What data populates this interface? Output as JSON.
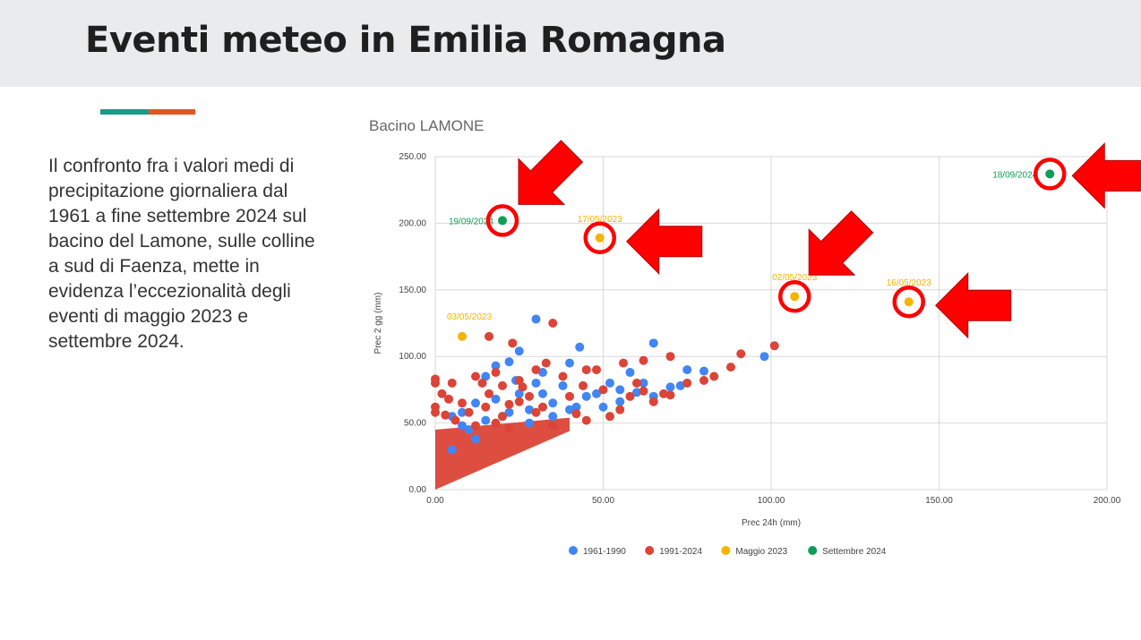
{
  "header": {
    "title": "Eventi meteo in Emilia Romagna"
  },
  "body_text": "Il confronto fra i valori medi di precipitazione giornaliera dal 1961 a fine settembre 2024 sul bacino del Lamone, sulle colline a sud di Faenza, mette in evidenza l’eccezionalità degli eventi di maggio 2023 e settembre 2024.",
  "colors": {
    "accent_teal": "#1a9b8a",
    "accent_orange": "#e1571f",
    "arrow": "#ff0000"
  },
  "chart_data": {
    "type": "scatter",
    "title": "Bacino LAMONE",
    "xlabel": "Prec 24h (mm)",
    "ylabel": "Prec 2 gg (mm)",
    "xlim": [
      0,
      200
    ],
    "ylim": [
      0,
      250
    ],
    "x_ticks": [
      "0.00",
      "50.00",
      "100.00",
      "150.00",
      "200.00"
    ],
    "y_ticks": [
      "0.00",
      "50.00",
      "100.00",
      "150.00",
      "200.00",
      "250.00"
    ],
    "grid": true,
    "legend_position": "bottom",
    "series": [
      {
        "name": "1961-1990",
        "color": "#4285f4",
        "points": [
          [
            30,
            128
          ],
          [
            43,
            107
          ],
          [
            65,
            110
          ],
          [
            98,
            100
          ],
          [
            25,
            104
          ],
          [
            18,
            93
          ],
          [
            22,
            96
          ],
          [
            32,
            88
          ],
          [
            40,
            95
          ],
          [
            58,
            88
          ],
          [
            75,
            90
          ],
          [
            80,
            89
          ],
          [
            52,
            80
          ],
          [
            62,
            80
          ],
          [
            45,
            70
          ],
          [
            35,
            65
          ],
          [
            28,
            60
          ],
          [
            20,
            55
          ],
          [
            15,
            52
          ],
          [
            10,
            45
          ],
          [
            12,
            65
          ],
          [
            25,
            72
          ],
          [
            38,
            78
          ],
          [
            55,
            66
          ],
          [
            48,
            72
          ],
          [
            70,
            77
          ],
          [
            73,
            78
          ],
          [
            60,
            73
          ],
          [
            55,
            75
          ],
          [
            5,
            55
          ],
          [
            8,
            48
          ],
          [
            18,
            68
          ],
          [
            24,
            82
          ],
          [
            42,
            62
          ],
          [
            32,
            72
          ],
          [
            15,
            85
          ],
          [
            22,
            58
          ],
          [
            8,
            58
          ],
          [
            12,
            38
          ],
          [
            5,
            30
          ],
          [
            28,
            50
          ],
          [
            35,
            55
          ],
          [
            50,
            62
          ],
          [
            65,
            70
          ],
          [
            30,
            80
          ],
          [
            40,
            60
          ]
        ]
      },
      {
        "name": "1991-2024",
        "color": "#db4437",
        "points": [
          [
            35,
            125
          ],
          [
            16,
            115
          ],
          [
            23,
            110
          ],
          [
            101,
            108
          ],
          [
            91,
            102
          ],
          [
            88,
            92
          ],
          [
            83,
            85
          ],
          [
            70,
            100
          ],
          [
            62,
            97
          ],
          [
            56,
            95
          ],
          [
            45,
            90
          ],
          [
            33,
            95
          ],
          [
            18,
            88
          ],
          [
            12,
            85
          ],
          [
            0,
            83
          ],
          [
            0,
            80
          ],
          [
            5,
            80
          ],
          [
            25,
            82
          ],
          [
            38,
            85
          ],
          [
            48,
            90
          ],
          [
            20,
            78
          ],
          [
            28,
            70
          ],
          [
            30,
            90
          ],
          [
            60,
            80
          ],
          [
            68,
            72
          ],
          [
            75,
            80
          ],
          [
            80,
            82
          ],
          [
            50,
            75
          ],
          [
            40,
            70
          ],
          [
            25,
            66
          ],
          [
            15,
            62
          ],
          [
            8,
            65
          ],
          [
            4,
            68
          ],
          [
            2,
            72
          ],
          [
            10,
            58
          ],
          [
            20,
            55
          ],
          [
            30,
            58
          ],
          [
            42,
            57
          ],
          [
            55,
            60
          ],
          [
            65,
            66
          ],
          [
            0,
            62
          ],
          [
            0,
            58
          ],
          [
            3,
            56
          ],
          [
            6,
            52
          ],
          [
            12,
            48
          ],
          [
            18,
            50
          ],
          [
            22,
            46
          ],
          [
            35,
            48
          ],
          [
            45,
            52
          ],
          [
            52,
            55
          ],
          [
            16,
            72
          ],
          [
            22,
            64
          ],
          [
            32,
            62
          ],
          [
            58,
            70
          ],
          [
            70,
            71
          ],
          [
            14,
            80
          ],
          [
            26,
            77
          ],
          [
            44,
            78
          ],
          [
            62,
            74
          ]
        ]
      },
      {
        "name": "Maggio 2023",
        "color": "#f4b400",
        "points": [
          [
            49,
            189
          ],
          [
            107,
            145
          ],
          [
            141,
            141
          ],
          [
            8,
            115
          ]
        ]
      },
      {
        "name": "Settembre 2024",
        "color": "#0f9d58",
        "points": [
          [
            20,
            202
          ],
          [
            183,
            237
          ]
        ]
      }
    ],
    "annotations": [
      {
        "text": "18/09/2024",
        "x": 183,
        "y": 237,
        "series": "Settembre 2024"
      },
      {
        "text": "19/09/2024",
        "x": 20,
        "y": 202,
        "series": "Settembre 2024"
      },
      {
        "text": "17/05/2023",
        "x": 49,
        "y": 189,
        "series": "Maggio 2023"
      },
      {
        "text": "02/05/2023",
        "x": 107,
        "y": 145,
        "series": "Maggio 2023"
      },
      {
        "text": "16/05/2023",
        "x": 141,
        "y": 141,
        "series": "Maggio 2023"
      },
      {
        "text": "03/05/2023",
        "x": 8,
        "y": 115,
        "series": "Maggio 2023"
      }
    ]
  }
}
